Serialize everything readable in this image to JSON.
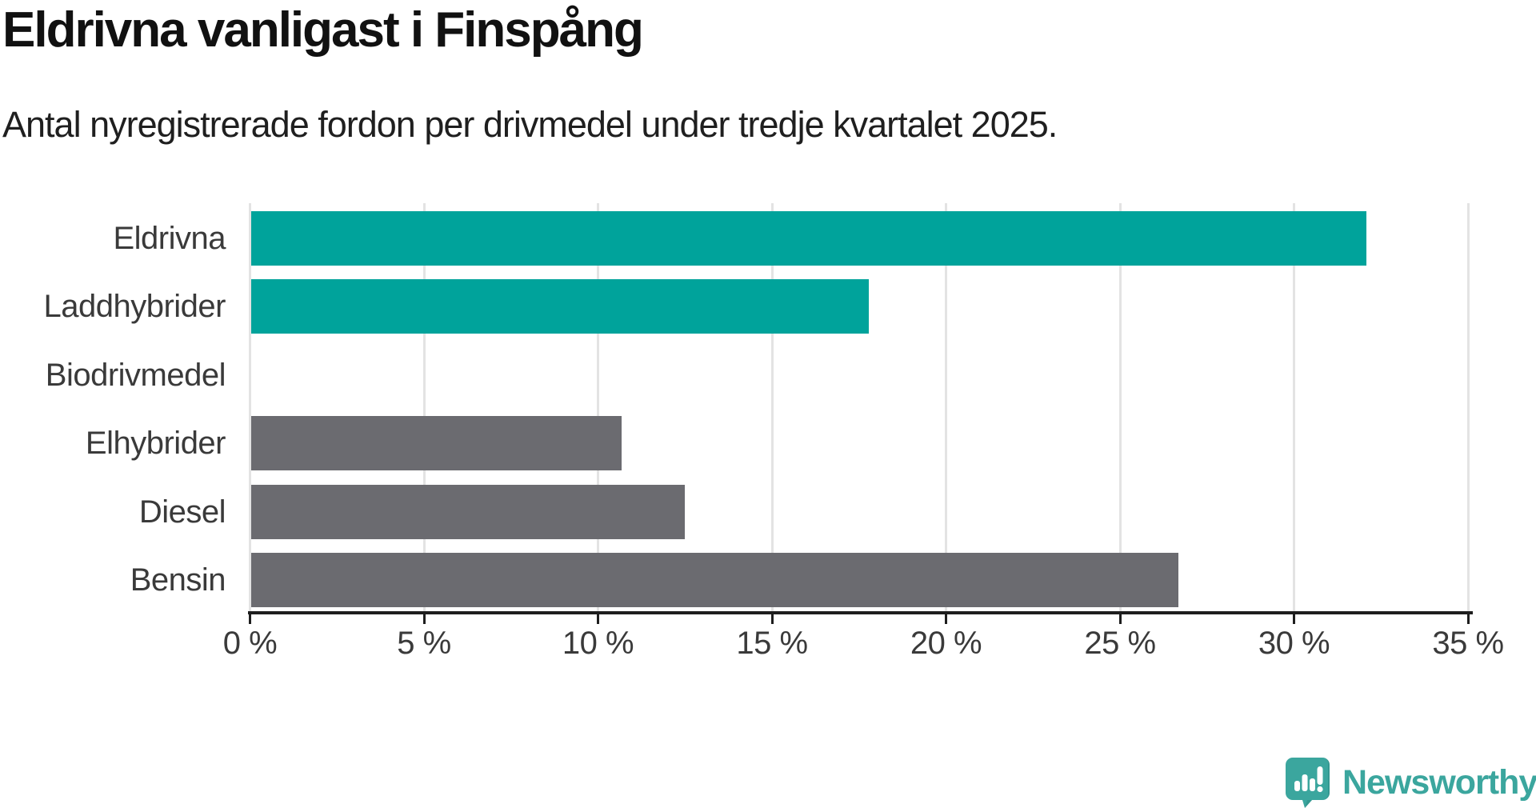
{
  "header": {
    "title": "Eldrivna vanligast i Finspång",
    "subtitle": "Antal nyregistrerade fordon per drivmedel under tredje kvartalet 2025."
  },
  "chart_data": {
    "type": "bar",
    "orientation": "horizontal",
    "title": "Eldrivna vanligast i Finspång",
    "subtitle": "Antal nyregistrerade fordon per drivmedel under tredje kvartalet 2025.",
    "categories": [
      "Eldrivna",
      "Laddhybrider",
      "Biodrivmedel",
      "Elhybrider",
      "Diesel",
      "Bensin"
    ],
    "values": [
      32.1,
      17.8,
      0,
      10.7,
      12.5,
      26.7
    ],
    "value_unit": "%",
    "bar_colors": [
      "#00A39B",
      "#00A39B",
      "#6B6B70",
      "#6B6B70",
      "#6B6B70",
      "#6B6B70"
    ],
    "xlim": [
      0,
      35
    ],
    "x_ticks": [
      0,
      5,
      10,
      15,
      20,
      25,
      30,
      35
    ],
    "x_tick_labels": [
      "0 %",
      "5 %",
      "10 %",
      "15 %",
      "20 %",
      "25 %",
      "30 %",
      "35 %"
    ],
    "xlabel": "",
    "ylabel": "",
    "grid": true,
    "legend": false
  },
  "colors": {
    "highlight": "#00A39B",
    "muted": "#6B6B70",
    "gridline": "#E3E3E3",
    "axis": "#1E1E1E",
    "title_text": "#111111",
    "subtitle_text": "#1F1F1F",
    "label_text": "#3A3A3A",
    "brand": "#3BA69E"
  },
  "footer": {
    "brand": "Newsworthy"
  }
}
